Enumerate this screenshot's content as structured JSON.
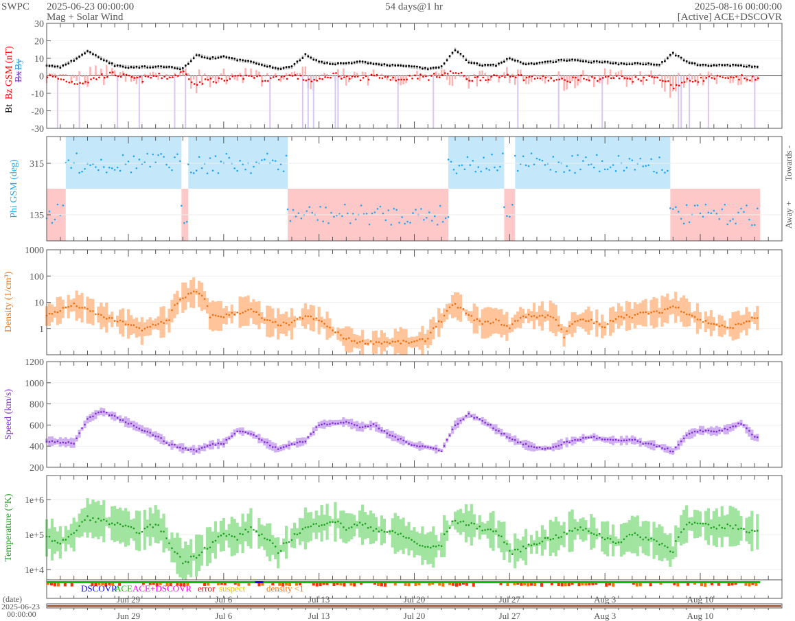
{
  "header": {
    "org": "SWPC",
    "start": "2025-06-23 00:00:00",
    "subtitle": "Mag + Solar Wind",
    "span": "54 days@1 hr",
    "end": "2025-08-16 00:00:00",
    "source": "[Active] ACE+DSCOVR"
  },
  "colors": {
    "bt": "#000000",
    "bz": "#ff0000",
    "bx": "#8040e0",
    "by": "#20a8f0",
    "phi": "#20a8f0",
    "density": "#f07010",
    "speed": "#8030d0",
    "temp": "#20a020",
    "towards": "#c4e8fa",
    "away": "#ffc8c8"
  },
  "chart_data": [
    {
      "type": "scatter",
      "name": "mag",
      "ylabel_parts": [
        "Bt",
        "Bz GSM (nT)",
        "Bx",
        "By"
      ],
      "ylim": [
        -30,
        30
      ],
      "yticks": [
        "30",
        "20",
        "10",
        "0",
        "-10",
        "-20",
        "-30"
      ],
      "ytick_values": [
        30,
        20,
        10,
        0,
        -10,
        -20,
        -30
      ],
      "x_unit": "days since 2025-06-23",
      "series": [
        {
          "name": "Bt",
          "values": [
            6,
            5,
            9,
            14,
            10,
            6,
            5,
            5,
            5,
            5,
            4,
            12,
            10,
            11,
            9,
            8,
            6,
            4,
            5,
            12,
            8,
            7,
            7,
            8,
            7,
            6,
            6,
            5,
            4,
            5,
            15,
            8,
            6,
            6,
            10,
            7,
            7,
            8,
            9,
            9,
            8,
            8,
            7,
            7,
            7,
            6,
            13,
            8,
            6,
            6,
            6,
            6,
            5
          ]
        },
        {
          "name": "Bz",
          "values": [
            0,
            -2,
            -4,
            -3,
            0,
            1,
            -1,
            -2,
            0,
            -1,
            2,
            -5,
            -2,
            -3,
            -1,
            0,
            -2,
            -1,
            0,
            -2,
            -3,
            1,
            -1,
            -2,
            0,
            -1,
            -2,
            0,
            -1,
            1,
            2,
            -2,
            -1,
            -1,
            1,
            -1,
            -1,
            -2,
            -3,
            -1,
            -2,
            -1,
            -1,
            -2,
            -1,
            -1,
            -6,
            -3,
            -2,
            -1,
            -2,
            -1,
            -2
          ]
        }
      ]
    },
    {
      "type": "scatter",
      "name": "phi",
      "ylabel": "Phi GSM (deg)",
      "yticks": [
        "315",
        "135"
      ],
      "ytick_values": [
        315,
        135
      ],
      "right_labels": [
        "Towards -",
        "Away +"
      ],
      "sectors": [
        {
          "from": 0,
          "to": 1.4,
          "s": "away"
        },
        {
          "from": 1.4,
          "to": 9.9,
          "s": "towards"
        },
        {
          "from": 9.9,
          "to": 10.4,
          "s": "away"
        },
        {
          "from": 10.4,
          "to": 17.7,
          "s": "towards"
        },
        {
          "from": 17.7,
          "to": 29.5,
          "s": "away"
        },
        {
          "from": 29.5,
          "to": 33.6,
          "s": "towards"
        },
        {
          "from": 33.6,
          "to": 34.4,
          "s": "away"
        },
        {
          "from": 34.4,
          "to": 45.8,
          "s": "towards"
        },
        {
          "from": 45.8,
          "to": 52.4,
          "s": "away"
        }
      ]
    },
    {
      "type": "scatter",
      "name": "density",
      "ylabel": "Density (1/cm³)",
      "scale": "log",
      "ylim": [
        0.1,
        1000
      ],
      "yticks": [
        "1000",
        "100",
        "10",
        "1"
      ],
      "ytick_values": [
        1000,
        100,
        10,
        1
      ],
      "values": [
        3,
        5,
        8,
        5,
        3,
        2,
        1.5,
        0.8,
        1.5,
        2,
        15,
        25,
        3,
        3,
        4,
        5,
        2,
        1.5,
        1.5,
        3,
        2,
        0.8,
        0.4,
        0.3,
        0.3,
        0.3,
        0.3,
        0.3,
        0.4,
        2,
        8,
        3,
        1.5,
        2,
        1,
        3,
        3,
        3,
        0.5,
        2,
        2,
        1,
        3,
        3,
        4,
        4,
        7,
        4,
        2,
        1.5,
        1,
        1.5,
        2.5
      ]
    },
    {
      "type": "scatter",
      "name": "speed",
      "ylabel": "Speed (km/s)",
      "ylim": [
        200,
        1200
      ],
      "yticks": [
        "1200",
        "1000",
        "800",
        "600",
        "400",
        "200"
      ],
      "ytick_values": [
        1200,
        1000,
        800,
        600,
        400,
        200
      ],
      "values": [
        450,
        440,
        430,
        650,
        730,
        680,
        620,
        560,
        500,
        420,
        380,
        360,
        410,
        430,
        550,
        520,
        440,
        370,
        420,
        450,
        600,
        620,
        630,
        580,
        600,
        520,
        460,
        410,
        390,
        360,
        600,
        700,
        640,
        560,
        480,
        420,
        380,
        380,
        430,
        460,
        490,
        460,
        450,
        460,
        420,
        400,
        350,
        500,
        550,
        540,
        560,
        620,
        480
      ]
    },
    {
      "type": "scatter",
      "name": "temperature",
      "ylabel": "Temperature (°K)",
      "scale": "log",
      "yticks": [
        "1e+6",
        "1e+5",
        "1e+4"
      ],
      "ytick_values": [
        1000000,
        100000,
        10000
      ],
      "values": [
        80000,
        60000,
        100000,
        300000,
        250000,
        200000,
        150000,
        120000,
        200000,
        50000,
        15000,
        25000,
        50000,
        100000,
        80000,
        150000,
        80000,
        30000,
        80000,
        150000,
        200000,
        250000,
        150000,
        200000,
        150000,
        120000,
        100000,
        60000,
        40000,
        50000,
        250000,
        200000,
        150000,
        120000,
        30000,
        40000,
        60000,
        80000,
        100000,
        150000,
        120000,
        80000,
        60000,
        100000,
        80000,
        60000,
        30000,
        200000,
        200000,
        150000,
        180000,
        150000,
        120000
      ]
    },
    {
      "type": "table",
      "name": "quality",
      "legend": [
        "DSCOVR",
        "ACE",
        "ACE+DSCOVR",
        "error",
        "suspect",
        "density <1"
      ],
      "legend_colors": [
        "#0000ff",
        "#00c000",
        "#ff00ff",
        "#ff0000",
        "#e0c000",
        "#ff7000"
      ]
    }
  ],
  "xaxis": {
    "labels": [
      "Jun 29",
      "Jul 6",
      "Jul 13",
      "Jul 20",
      "Jul 27",
      "Aug 3",
      "Aug 10"
    ],
    "label_days": [
      6,
      13,
      20,
      27,
      34,
      41,
      48
    ],
    "days": 54
  },
  "date_axis": {
    "title": "(date)",
    "start_date": "2025-06-23",
    "start_time": "00:00:00"
  }
}
